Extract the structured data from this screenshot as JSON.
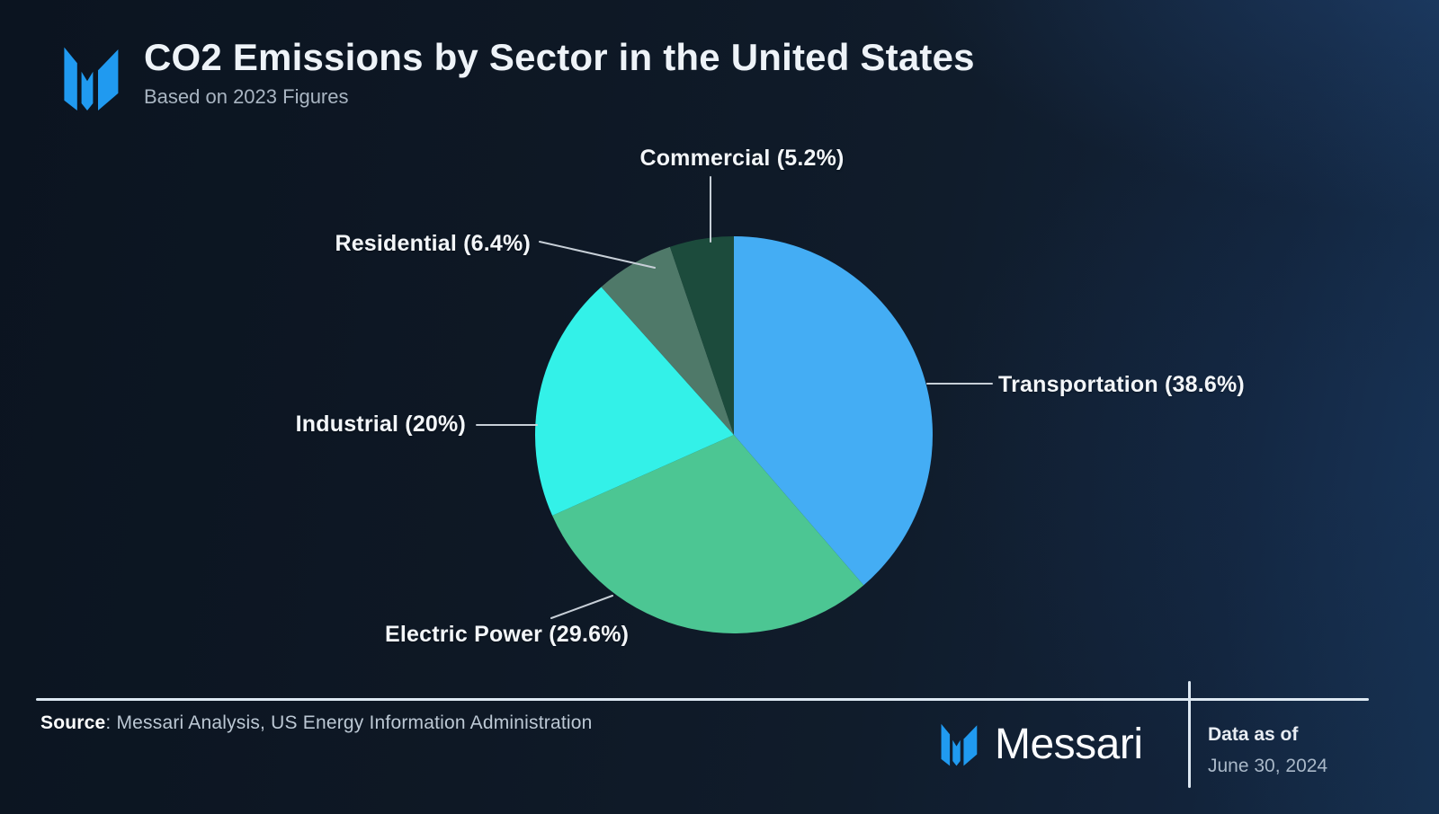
{
  "header": {
    "title": "CO2 Emissions by Sector in the United States",
    "subtitle": "Based on 2023 Figures"
  },
  "brand": {
    "logo_color": "#209af0",
    "name": "Messari"
  },
  "chart_data": {
    "type": "pie",
    "title": "CO2 Emissions by Sector in the United States",
    "subtitle": "Based on 2023 Figures",
    "unit": "percent",
    "start_angle_deg": 0,
    "direction": "clockwise",
    "legend_position": "callout-labels",
    "slices": [
      {
        "label": "Transportation",
        "value": 38.6,
        "display": "Transportation (38.6%)",
        "color": "#44adf4"
      },
      {
        "label": "Electric Power",
        "value": 29.6,
        "display": "Electric Power (29.6%)",
        "color": "#4cc693"
      },
      {
        "label": "Industrial",
        "value": 20,
        "display": "Industrial (20%)",
        "color": "#33f1e8"
      },
      {
        "label": "Residential",
        "value": 6.4,
        "display": "Residential (6.4%)",
        "color": "#4f7969"
      },
      {
        "label": "Commercial",
        "value": 5.2,
        "display": "Commercial (5.2%)",
        "color": "#1c4b3c"
      }
    ]
  },
  "footer": {
    "source_label": "Source",
    "source_rest": ": Messari Analysis, US Energy Information Administration",
    "brand_name": "Messari",
    "data_as_of_label": "Data as of",
    "data_as_of_date": "June 30, 2024"
  }
}
